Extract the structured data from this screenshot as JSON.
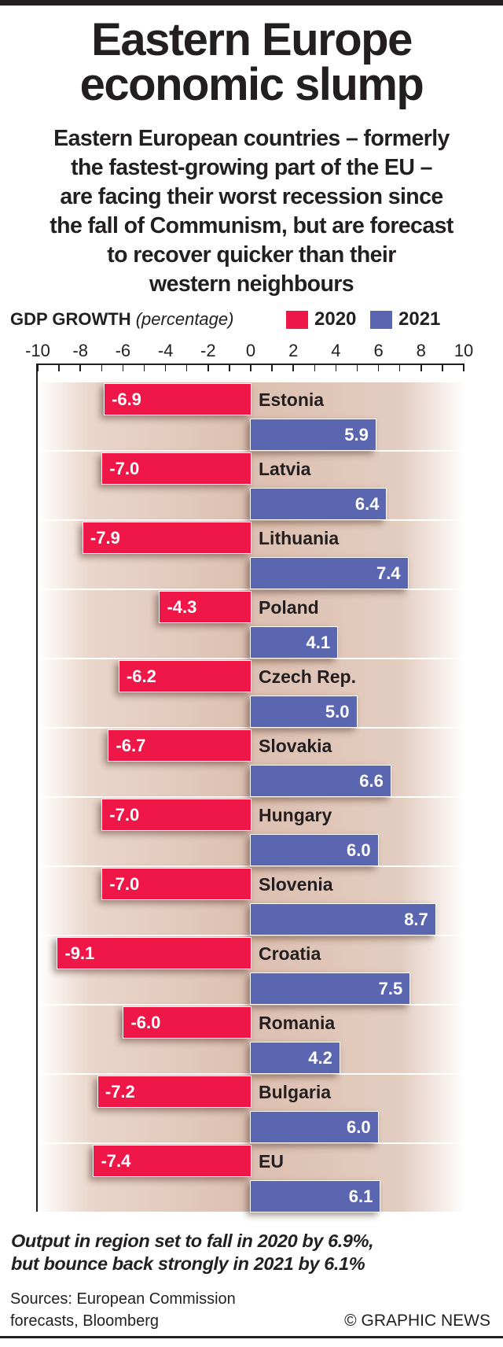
{
  "title": [
    "Eastern Europe",
    "economic slump"
  ],
  "subtitle": [
    "Eastern European countries – formerly",
    "the fastest-growing part of the EU –",
    "are facing their worst recession since",
    "the fall of Communism, but are forecast",
    "to recover quicker than their",
    "western neighbours"
  ],
  "chart_data": {
    "type": "bar",
    "orientation": "horizontal",
    "title": "GDP GROWTH",
    "units": "(percentage)",
    "categories": [
      "Estonia",
      "Latvia",
      "Lithuania",
      "Poland",
      "Czech Rep.",
      "Slovakia",
      "Hungary",
      "Slovenia",
      "Croatia",
      "Romania",
      "Bulgaria",
      "EU"
    ],
    "series": [
      {
        "name": "2020",
        "color": "#ee1748",
        "values": [
          -6.9,
          -7.0,
          -7.9,
          -4.3,
          -6.2,
          -6.7,
          -7.0,
          -7.0,
          -9.1,
          -6.0,
          -7.2,
          -7.4
        ],
        "labels": [
          "-6.9",
          "-7.0",
          "-7.9",
          "-4.3",
          "-6.2",
          "-6.7",
          "-7.0",
          "-7.0",
          "-9.1",
          "-6.0",
          "-7.2",
          "-7.4"
        ]
      },
      {
        "name": "2021",
        "color": "#5b66b0",
        "values": [
          5.9,
          6.4,
          7.4,
          4.1,
          5.0,
          6.6,
          6.0,
          8.7,
          7.5,
          4.2,
          6.0,
          6.1
        ],
        "labels": [
          "5.9",
          "6.4",
          "7.4",
          "4.1",
          "5.0",
          "6.6",
          "6.0",
          "8.7",
          "7.5",
          "4.2",
          "6.0",
          "6.1"
        ]
      }
    ],
    "xlim": [
      -10,
      10
    ],
    "ticks": [
      "-10",
      "-8",
      "-6",
      "-4",
      "-2",
      "0",
      "2",
      "4",
      "6",
      "8",
      "10"
    ],
    "legend": "top-right"
  },
  "note": [
    "Output in region set to fall in 2020 by 6.9%,",
    "but bounce back strongly in 2021 by 6.1%"
  ],
  "sources": [
    "Sources: European Commission",
    "forecasts, Bloomberg"
  ],
  "copyright": "© GRAPHIC NEWS"
}
